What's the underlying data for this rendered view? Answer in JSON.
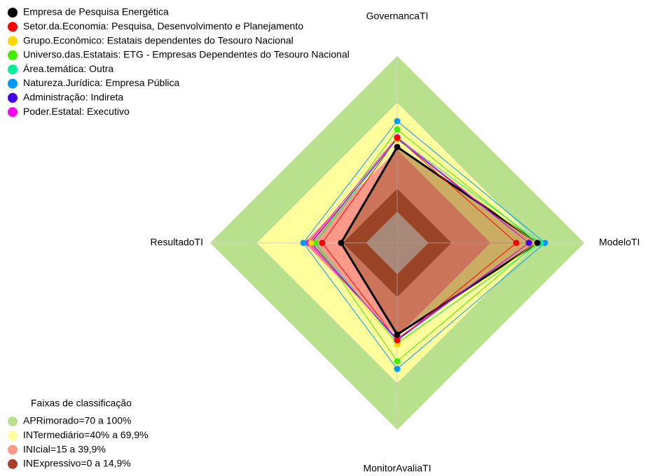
{
  "chart_data": {
    "type": "radar",
    "categories": [
      "GovernancaTI",
      "ModeloTI",
      "MonitorAvaliaTI",
      "ResultadoTI"
    ],
    "ylim": [
      -20,
      100
    ],
    "series": [
      {
        "name": "Empresa de Pesquisa Energética",
        "color": "#000000",
        "values": [
          41.6,
          69.9,
          38.9,
          16
        ]
      },
      {
        "name": "Setor.da.Economia: Pesquisa, Desenvolvimento e Planejamento",
        "color": "#ff0000",
        "values": [
          47.4,
          56.4,
          42.5,
          28.1
        ]
      },
      {
        "name": "Grupo.Econômico: Estatais dependentes do Tesouro Nacional",
        "color": "#ffd700",
        "values": [
          46.5,
          69,
          45.2,
          35.3
        ]
      },
      {
        "name": "Universo.das.Estatais: ETG - Empresas Dependentes do Tesouro Nacional",
        "color": "#44ee00",
        "values": [
          52.8,
          70,
          56,
          32.6
        ]
      },
      {
        "name": "Área.temática: Outra",
        "color": "#00ee99",
        "values": [
          47.4,
          72,
          44.3,
          32.6
        ]
      },
      {
        "name": "Natureza.Jurídica: Empresa Pública",
        "color": "#0099ff",
        "values": [
          58.2,
          74.8,
          60.9,
          40.2
        ]
      },
      {
        "name": "Administração: Indireta",
        "color": "#4400ee",
        "values": [
          46.9,
          64.5,
          42.5,
          35.3
        ]
      },
      {
        "name": "Poder.Estatal: Executivo",
        "color": "#ff00ee",
        "values": [
          47.9,
          64.5,
          41.6,
          37
        ]
      }
    ],
    "bands_title": "Faixas de classificação",
    "bands": [
      {
        "label": "APRimorado=70 a 100%",
        "color": "#b9e08c",
        "lower": 70,
        "upper": 100
      },
      {
        "label": "INTermediário=40% a 69,9%",
        "color": "#ffff9c",
        "lower": 40,
        "upper": 69.9
      },
      {
        "label": "INIcial=15 a 39,9%",
        "color": "#ff9a8a",
        "lower": 15,
        "upper": 39.9
      },
      {
        "label": "INExpressivo=0 a 14,9%",
        "color": "#a8402e",
        "lower": 0,
        "upper": 14.9
      }
    ]
  }
}
